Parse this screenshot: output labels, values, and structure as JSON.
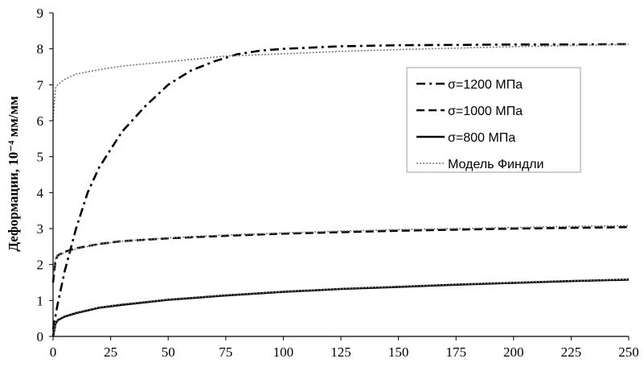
{
  "chart_data": {
    "type": "line",
    "ylabel": "Деформации, 10⁻⁴ мм/мм",
    "xlabel": "",
    "xlim": [
      0,
      250
    ],
    "ylim": [
      0,
      9
    ],
    "x_ticks": [
      "0",
      "25",
      "50",
      "75",
      "100",
      "125",
      "150",
      "175",
      "200",
      "225",
      "250"
    ],
    "y_ticks": [
      "0",
      "1",
      "2",
      "3",
      "4",
      "5",
      "6",
      "7",
      "8",
      "9"
    ],
    "grid": false,
    "legend_position": "right",
    "series": [
      {
        "name": "σ=1200 МПа",
        "style": "dash-dot",
        "color": "#000000",
        "x": [
          0,
          2,
          5,
          10,
          15,
          20,
          25,
          30,
          40,
          50,
          60,
          70,
          80,
          90,
          100,
          125,
          150,
          175,
          200,
          225,
          250
        ],
        "y": [
          0.2,
          0.9,
          1.8,
          3.0,
          4.0,
          4.7,
          5.2,
          5.7,
          6.4,
          7.0,
          7.4,
          7.65,
          7.85,
          7.95,
          8.0,
          8.07,
          8.1,
          8.11,
          8.12,
          8.12,
          8.13
        ]
      },
      {
        "name": "σ=1000 МПа",
        "style": "dash",
        "color": "#000000",
        "x": [
          0,
          1,
          2,
          5,
          10,
          20,
          30,
          50,
          75,
          100,
          125,
          150,
          175,
          200,
          225,
          250
        ],
        "y": [
          1.5,
          2.1,
          2.25,
          2.35,
          2.45,
          2.57,
          2.65,
          2.73,
          2.8,
          2.86,
          2.9,
          2.94,
          2.97,
          3.0,
          3.02,
          3.04
        ]
      },
      {
        "name": "σ=800 МПа",
        "style": "solid",
        "color": "#000000",
        "x": [
          0,
          1,
          2,
          5,
          10,
          20,
          30,
          50,
          75,
          100,
          125,
          150,
          175,
          200,
          225,
          250
        ],
        "y": [
          0.0,
          0.35,
          0.45,
          0.55,
          0.65,
          0.8,
          0.88,
          1.02,
          1.14,
          1.24,
          1.32,
          1.38,
          1.44,
          1.49,
          1.54,
          1.58
        ]
      },
      {
        "name": "Модель Финдли",
        "style": "dotted",
        "color": "#777777",
        "x": [
          0,
          1,
          2,
          5,
          10,
          20,
          30,
          50,
          75,
          100,
          125,
          150,
          175,
          200,
          225,
          250
        ],
        "y": [
          6.0,
          6.9,
          7.0,
          7.15,
          7.3,
          7.42,
          7.52,
          7.64,
          7.8,
          7.86,
          7.93,
          7.98,
          8.02,
          8.06,
          8.09,
          8.12
        ]
      },
      {
        "name": "",
        "style": "dotted",
        "color": "#777777",
        "x": [
          0,
          1,
          2,
          5,
          10,
          20,
          30,
          50,
          75,
          100,
          125,
          150,
          175,
          200,
          225,
          250
        ],
        "y": [
          1.6,
          2.15,
          2.25,
          2.33,
          2.43,
          2.57,
          2.65,
          2.74,
          2.82,
          2.88,
          2.93,
          2.97,
          3.0,
          3.03,
          3.06,
          3.08
        ]
      },
      {
        "name": "",
        "style": "dotted",
        "color": "#777777",
        "x": [
          0,
          1,
          2,
          5,
          10,
          20,
          30,
          50,
          75,
          100,
          125,
          150,
          175,
          200,
          225,
          250
        ],
        "y": [
          0.0,
          0.37,
          0.47,
          0.57,
          0.67,
          0.81,
          0.9,
          1.03,
          1.15,
          1.25,
          1.33,
          1.39,
          1.45,
          1.5,
          1.55,
          1.59
        ]
      }
    ]
  }
}
